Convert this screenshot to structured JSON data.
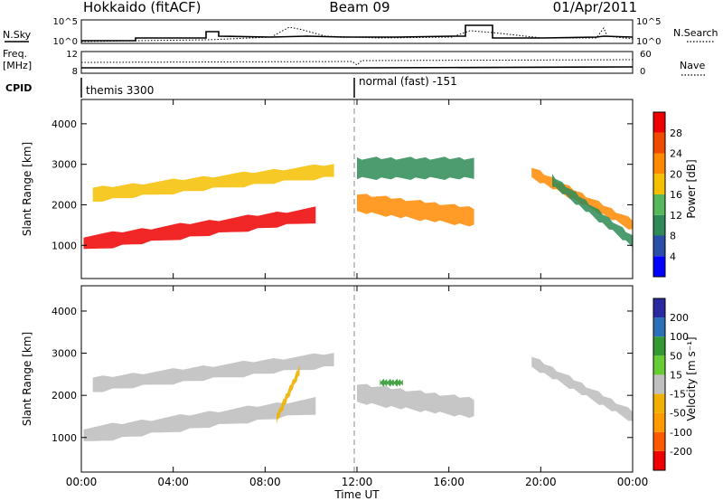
{
  "header": {
    "title": "Hokkaido (fitACF)",
    "beam": "Beam 09",
    "date": "01/Apr/2011"
  },
  "status_panel": {
    "nsky_label": "N.Sky",
    "nsearch_label": "N.Search",
    "freq_label_line1": "Freq.",
    "freq_label_line2": "[MHz]",
    "nave_label": "Nave",
    "cpid_label": "CPID",
    "nsky_ticks": [
      "10^5",
      "10^0"
    ],
    "nsearch_ticks": [
      "10^5",
      "10^0"
    ],
    "freq_ticks": [
      "12",
      "8"
    ],
    "nave_ticks": [
      "60",
      "0"
    ],
    "cpid_segments": [
      {
        "label": "themis 3300",
        "start_hour": 0,
        "end_hour": 12
      },
      {
        "label": "normal (fast) -151",
        "start_hour": 12,
        "end_hour": 24
      }
    ]
  },
  "time_axis": {
    "label": "Time UT",
    "ticks": [
      "00:00",
      "04:00",
      "08:00",
      "12:00",
      "16:00",
      "20:00",
      "00:00"
    ]
  },
  "chart_data": [
    {
      "type": "heatmap",
      "title": "",
      "xlabel": "Time UT",
      "ylabel": "Slant Range [km]",
      "x_range_hours": [
        0,
        24
      ],
      "ylim": [
        180,
        4600
      ],
      "yticks": [
        "4000",
        "3000",
        "2000",
        "1000"
      ],
      "colorbar": {
        "label": "Power [dB]",
        "ticks": [
          "28",
          "24",
          "20",
          "16",
          "12",
          "8",
          "4"
        ],
        "colors": [
          "#0000ff",
          "#2a4fa8",
          "#2e8b57",
          "#55b85a",
          "#f6c000",
          "#ff8a00",
          "#f04a00",
          "#ee0000"
        ]
      },
      "echo_bands": [
        {
          "name": "",
          "start_hour": 0.1,
          "end_hour": 10.2,
          "center_km_start": 1050,
          "center_km_end": 1750,
          "width_km": 350,
          "value": 29
        },
        {
          "name": "",
          "start_hour": 0.5,
          "end_hour": 11.0,
          "center_km_start": 2250,
          "center_km_end": 2850,
          "width_km": 320,
          "value": 18
        },
        {
          "name": "",
          "start_hour": 12.0,
          "end_hour": 17.1,
          "center_km_start": 2050,
          "center_km_end": 1700,
          "width_km": 450,
          "value": 22
        },
        {
          "name": "",
          "start_hour": 12.0,
          "end_hour": 17.1,
          "center_km_start": 2900,
          "center_km_end": 2900,
          "width_km": 500,
          "value": 12
        },
        {
          "name": "",
          "start_hour": 19.6,
          "end_hour": 24.0,
          "center_km_start": 2800,
          "center_km_end": 1500,
          "width_km": 250,
          "value": 20
        },
        {
          "name": "",
          "start_hour": 20.5,
          "end_hour": 24.0,
          "center_km_start": 2600,
          "center_km_end": 1100,
          "width_km": 250,
          "value": 10
        }
      ]
    },
    {
      "type": "heatmap",
      "title": "",
      "xlabel": "Time UT",
      "ylabel": "Slant Range [km]",
      "x_range_hours": [
        0,
        24
      ],
      "ylim": [
        180,
        4600
      ],
      "yticks": [
        "4000",
        "3000",
        "2000",
        "1000"
      ],
      "colorbar": {
        "label": "Velocity [m s⁻¹]",
        "ticks": [
          "200",
          "100",
          "50",
          "15",
          "-15",
          "-50",
          "-100",
          "-200"
        ],
        "colors": [
          "#ee0000",
          "#ff5a00",
          "#ff9a00",
          "#f0b000",
          "#c0c0c0",
          "#66cc33",
          "#339933",
          "#2a6fb8",
          "#2a2aa0"
        ]
      },
      "echo_bands": [
        {
          "name": "",
          "start_hour": 0.1,
          "end_hour": 10.2,
          "center_km_start": 1050,
          "center_km_end": 1750,
          "width_km": 350,
          "value": 0
        },
        {
          "name": "",
          "start_hour": 0.5,
          "end_hour": 11.0,
          "center_km_start": 2250,
          "center_km_end": 2850,
          "width_km": 320,
          "value": 0
        },
        {
          "name": "",
          "start_hour": 12.0,
          "end_hour": 17.1,
          "center_km_start": 2050,
          "center_km_end": 1700,
          "width_km": 450,
          "value": 0
        },
        {
          "name": "",
          "start_hour": 13.0,
          "end_hour": 14.0,
          "center_km_start": 2300,
          "center_km_end": 2300,
          "width_km": 120,
          "value": 60
        },
        {
          "name": "",
          "start_hour": 19.6,
          "end_hour": 24.0,
          "center_km_start": 2800,
          "center_km_end": 1500,
          "width_km": 250,
          "value": 0
        },
        {
          "name": "",
          "start_hour": 8.5,
          "end_hour": 9.5,
          "center_km_start": 1450,
          "center_km_end": 2600,
          "width_km": 200,
          "value": -40
        }
      ]
    }
  ]
}
